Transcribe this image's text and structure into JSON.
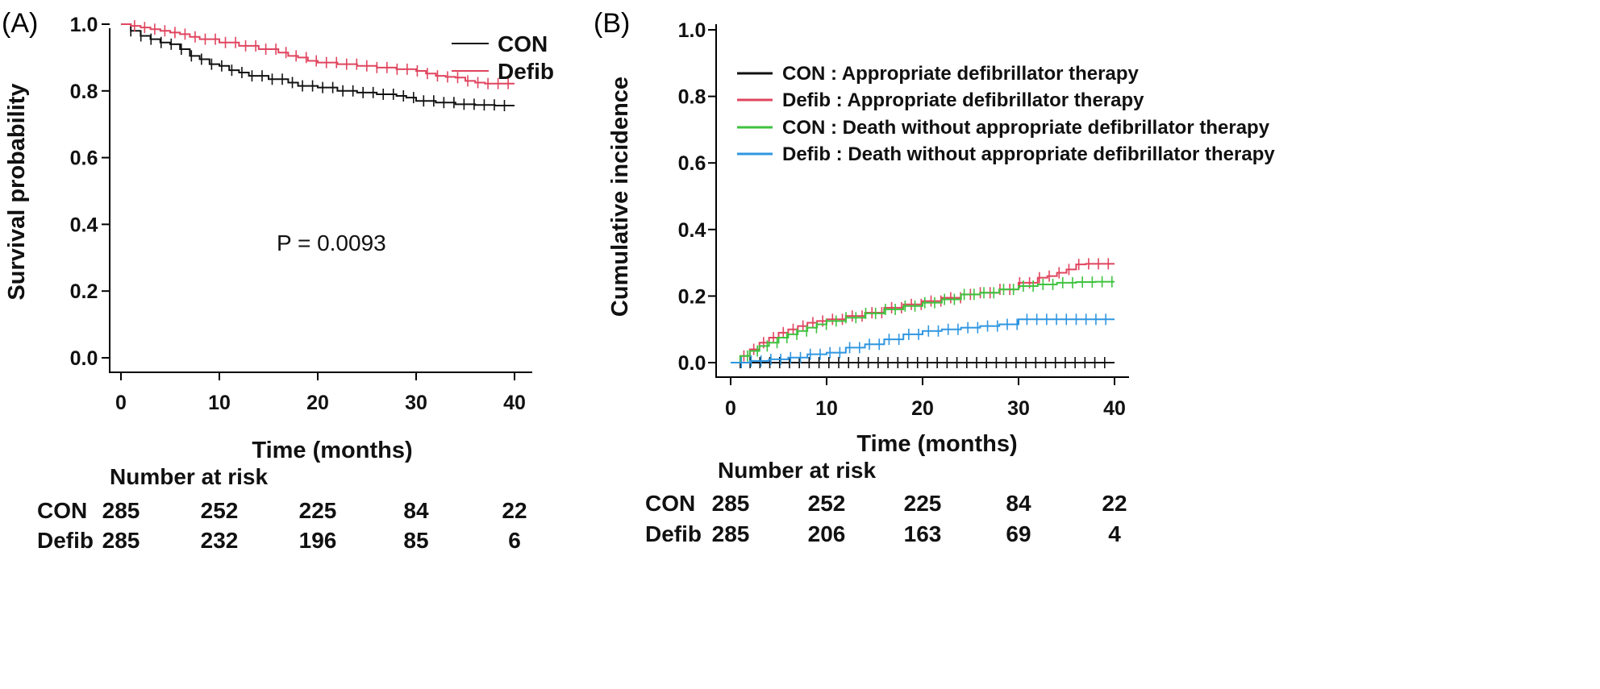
{
  "colors": {
    "con": "#111111",
    "defib": "#e0455f",
    "green": "#3fc23f",
    "blue": "#2f96e0"
  },
  "chart_data": [
    {
      "panel": "(A)",
      "type": "line",
      "subtype": "kaplan-meier",
      "xlabel": "Time (months)",
      "ylabel": "Survival probability",
      "xlim": [
        0,
        40
      ],
      "ylim": [
        0,
        1
      ],
      "xticks": [
        "0",
        "10",
        "20",
        "30",
        "40"
      ],
      "yticks": [
        "0.0",
        "0.2",
        "0.4",
        "0.6",
        "0.8",
        "1.0"
      ],
      "legend_position": "top-right",
      "annotation": "P = 0.0093",
      "series": [
        {
          "name": "CON",
          "color_key": "con",
          "x": [
            0,
            1,
            2,
            3,
            4,
            5,
            6,
            7,
            8,
            9,
            10,
            11,
            12,
            13,
            15,
            17,
            18,
            20,
            22,
            24,
            26,
            28,
            29,
            30,
            32,
            34,
            36,
            38,
            40
          ],
          "y": [
            1.0,
            0.98,
            0.965,
            0.955,
            0.945,
            0.94,
            0.925,
            0.905,
            0.895,
            0.88,
            0.875,
            0.862,
            0.855,
            0.845,
            0.835,
            0.825,
            0.815,
            0.81,
            0.8,
            0.795,
            0.79,
            0.785,
            0.78,
            0.77,
            0.765,
            0.76,
            0.758,
            0.756,
            0.756
          ]
        },
        {
          "name": "Defib",
          "color_key": "defib",
          "x": [
            0,
            1,
            2,
            3,
            4,
            5,
            6,
            7,
            8,
            10,
            12,
            14,
            16,
            17,
            18,
            19,
            20,
            22,
            24,
            26,
            28,
            30,
            31,
            32,
            33,
            34,
            35,
            36,
            37,
            38,
            39,
            40
          ],
          "y": [
            1.0,
            0.995,
            0.99,
            0.985,
            0.98,
            0.975,
            0.97,
            0.962,
            0.955,
            0.945,
            0.935,
            0.925,
            0.915,
            0.905,
            0.9,
            0.89,
            0.885,
            0.88,
            0.875,
            0.87,
            0.865,
            0.86,
            0.852,
            0.845,
            0.842,
            0.84,
            0.83,
            0.825,
            0.822,
            0.822,
            0.822,
            0.822
          ]
        }
      ],
      "risk_table": {
        "title": "Number at risk",
        "times": [
          0,
          10,
          20,
          30,
          40
        ],
        "rows": [
          {
            "label": "CON",
            "values": [
              "285",
              "252",
              "225",
              "84",
              "22"
            ]
          },
          {
            "label": "Defib",
            "values": [
              "285",
              "232",
              "196",
              "85",
              "6"
            ]
          }
        ]
      }
    },
    {
      "panel": "(B)",
      "type": "line",
      "subtype": "cumulative-incidence",
      "xlabel": "Time (months)",
      "ylabel": "Cumulative incidence",
      "xlim": [
        0,
        40
      ],
      "ylim": [
        0,
        1
      ],
      "xticks": [
        "0",
        "10",
        "20",
        "30",
        "40"
      ],
      "yticks": [
        "0.0",
        "0.2",
        "0.4",
        "0.6",
        "0.8",
        "1.0"
      ],
      "legend_position": "top-right",
      "series": [
        {
          "name": "CON : Appropriate defibrillator therapy",
          "color_key": "con",
          "x": [
            0,
            10,
            20,
            30,
            40
          ],
          "y": [
            0,
            0,
            0,
            0,
            0
          ]
        },
        {
          "name": "Defib : Appropriate defibrillator therapy",
          "color_key": "defib",
          "x": [
            0,
            1,
            2,
            3,
            4,
            5,
            6,
            7,
            8,
            9,
            10,
            12,
            14,
            16,
            18,
            20,
            22,
            24,
            26,
            28,
            30,
            32,
            33,
            34,
            35,
            36,
            37,
            38,
            40
          ],
          "y": [
            0,
            0.02,
            0.04,
            0.06,
            0.075,
            0.09,
            0.1,
            0.11,
            0.12,
            0.125,
            0.13,
            0.14,
            0.15,
            0.165,
            0.175,
            0.185,
            0.195,
            0.205,
            0.21,
            0.22,
            0.24,
            0.255,
            0.26,
            0.27,
            0.28,
            0.295,
            0.297,
            0.297,
            0.297
          ]
        },
        {
          "name": "CON : Death without appropriate defibrillator therapy",
          "color_key": "green",
          "x": [
            0,
            1,
            2,
            3,
            4,
            5,
            6,
            7,
            8,
            9,
            10,
            12,
            14,
            16,
            18,
            20,
            22,
            24,
            26,
            28,
            30,
            32,
            34,
            36,
            38,
            40
          ],
          "y": [
            0,
            0.02,
            0.035,
            0.05,
            0.06,
            0.075,
            0.085,
            0.095,
            0.105,
            0.115,
            0.125,
            0.135,
            0.148,
            0.16,
            0.17,
            0.18,
            0.19,
            0.205,
            0.21,
            0.22,
            0.23,
            0.235,
            0.24,
            0.242,
            0.243,
            0.243
          ]
        },
        {
          "name": "Defib : Death without appropriate defibrillator therapy",
          "color_key": "blue",
          "x": [
            0,
            2,
            4,
            6,
            8,
            10,
            12,
            14,
            16,
            18,
            20,
            22,
            24,
            26,
            28,
            30,
            32,
            34,
            36,
            38,
            40
          ],
          "y": [
            0,
            0.005,
            0.01,
            0.015,
            0.025,
            0.03,
            0.045,
            0.055,
            0.07,
            0.085,
            0.095,
            0.1,
            0.105,
            0.11,
            0.115,
            0.13,
            0.13,
            0.13,
            0.13,
            0.13,
            0.13
          ]
        }
      ],
      "risk_table": {
        "title": "Number at risk",
        "times": [
          0,
          10,
          20,
          30,
          40
        ],
        "rows": [
          {
            "label": "CON",
            "values": [
              "285",
              "252",
              "225",
              "84",
              "22"
            ]
          },
          {
            "label": "Defib",
            "values": [
              "285",
              "206",
              "163",
              "69",
              "4"
            ]
          }
        ]
      }
    }
  ]
}
